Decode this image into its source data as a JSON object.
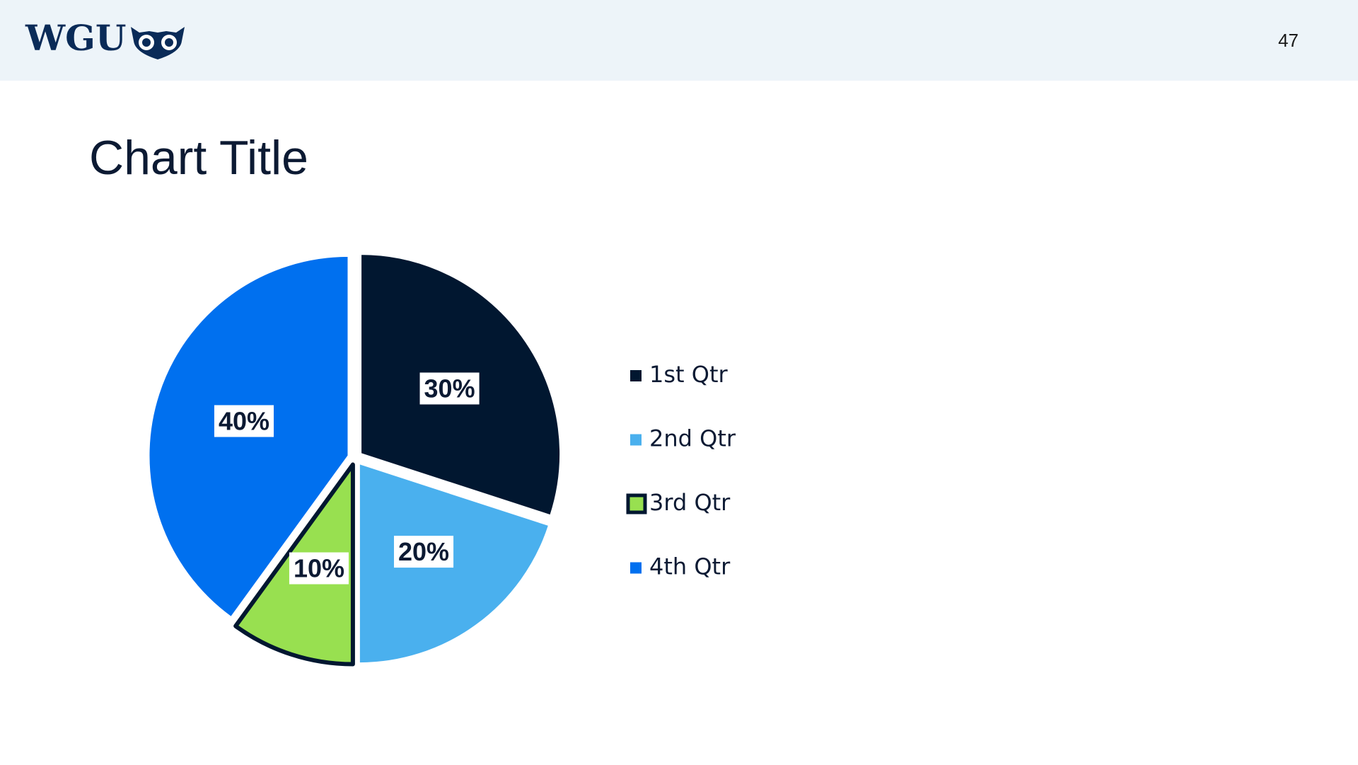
{
  "header": {
    "logo": "WGU",
    "page_number": "47"
  },
  "chart_data": {
    "type": "pie",
    "title": "Chart Title",
    "categories": [
      "1st Qtr",
      "2nd Qtr",
      "3rd Qtr",
      "4th Qtr"
    ],
    "values": [
      30,
      20,
      10,
      40
    ],
    "value_labels": [
      "30%",
      "20%",
      "10%",
      "40%"
    ],
    "colors": [
      "#011730",
      "#4ab0ee",
      "#98e050",
      "#0070ef"
    ],
    "edge_colors": [
      null,
      null,
      "#011730",
      null
    ],
    "legend": "right"
  }
}
